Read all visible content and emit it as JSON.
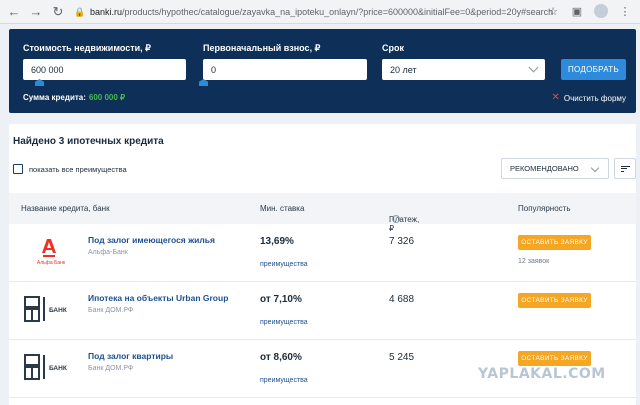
{
  "browser": {
    "url_host": "banki.ru",
    "url_path": "/products/hypothec/catalogue/zayavka_na_ipoteku_onlayn/?price=600000&initialFee=0&period=20y#search"
  },
  "filter": {
    "price_label": "Стоимость недвижимости, ₽",
    "price_value": "600 000",
    "fee_label": "Первоначальный взнос, ₽",
    "fee_value": "0",
    "term_label": "Срок",
    "term_value": "20 лет",
    "find_button": "ПОДОБРАТЬ",
    "credit_sum_label": "Сумма кредита:",
    "credit_sum_value": "600 000 ₽",
    "clear_label": "Очистить форму"
  },
  "results": {
    "title": "Найдено 3 ипотечных кредита",
    "show_all_label": "показать все преимущества",
    "sort_value": "РЕКОМЕНДОВАНО",
    "columns": {
      "name": "Название кредита, банк",
      "rate": "Мин. ставка",
      "payment": "Платеж, ₽",
      "popularity": "Популярность"
    },
    "rows": [
      {
        "name": "Под залог имеющегося жилья",
        "bank": "Альфа-Банк",
        "rate": "13,69%",
        "advantages": "преимущества",
        "payment": "7 326",
        "apply": "ОСТАВИТЬ ЗАЯВКУ",
        "requests": "12 заявок",
        "logo_text": "Альфа Банк",
        "logo_color": "#ef3124"
      },
      {
        "name": "Ипотека на объекты Urban Group",
        "bank": "Банк ДОМ.РФ",
        "rate": "от 7,10%",
        "advantages": "преимущества",
        "payment": "4 688",
        "apply": "ОСТАВИТЬ ЗАЯВКУ",
        "logo_text": "БАНК"
      },
      {
        "name": "Под залог квартиры",
        "bank": "Банк ДОМ.РФ",
        "rate": "от 8,60%",
        "advantages": "преимущества",
        "payment": "5 245",
        "apply": "ОСТАВИТЬ ЗАЯВКУ",
        "logo_text": "БАНК"
      }
    ]
  },
  "watermark": "YAPLAKAL.COM",
  "colors": {
    "panel": "#0e2f57",
    "button_blue": "#2e8bdb",
    "button_orange": "#f5a623",
    "sum_green": "#46b757",
    "link_blue": "#1f4f8f"
  }
}
